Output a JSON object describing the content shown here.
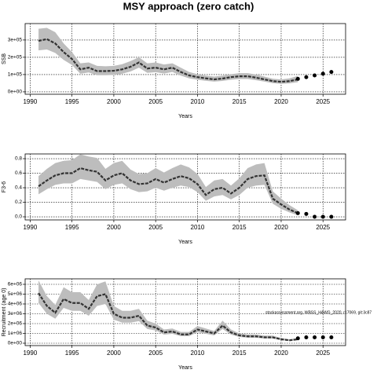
{
  "title": "MSY approach (zero catch)",
  "chart_data": [
    {
      "type": "line",
      "y_label": "SSB",
      "x_label": "Years",
      "grid": true,
      "band_color": "#bdbdbd",
      "line_color": "#333333",
      "point_color": "#000000",
      "xlim": [
        1989.4,
        2027.7
      ],
      "xticks": [
        1990,
        1995,
        2000,
        2005,
        2010,
        2015,
        2020,
        2025
      ],
      "ylim": [
        -14000,
        395000
      ],
      "yticks": [
        {
          "value": 0,
          "label": "0e+00"
        },
        {
          "value": 100000,
          "label": "1e+05"
        },
        {
          "value": 200000,
          "label": "2e+05"
        },
        {
          "value": 300000,
          "label": "3e+05"
        }
      ],
      "x": [
        1991,
        1992,
        1993,
        1994,
        1995,
        1996,
        1997,
        1998,
        1999,
        2000,
        2001,
        2002,
        2003,
        2004,
        2005,
        2006,
        2007,
        2008,
        2009,
        2010,
        2011,
        2012,
        2013,
        2014,
        2015,
        2016,
        2017,
        2018,
        2019,
        2020,
        2021,
        2022
      ],
      "values": [
        295000,
        305000,
        280000,
        230000,
        190000,
        130000,
        140000,
        120000,
        120000,
        122000,
        130000,
        145000,
        170000,
        135000,
        140000,
        130000,
        140000,
        115000,
        95000,
        85000,
        78000,
        72000,
        77000,
        85000,
        90000,
        90000,
        82000,
        72000,
        62000,
        58000,
        62000,
        72000
      ],
      "upper": [
        365000,
        370000,
        345000,
        280000,
        230000,
        165000,
        170000,
        150000,
        148000,
        150000,
        160000,
        178000,
        200000,
        165000,
        170000,
        158000,
        165000,
        140000,
        115000,
        102000,
        94000,
        88000,
        94000,
        102000,
        108000,
        108000,
        100000,
        88000,
        76000,
        72000,
        78000,
        92000
      ],
      "lower": [
        240000,
        245000,
        225000,
        185000,
        155000,
        105000,
        112000,
        96000,
        96000,
        98000,
        105000,
        118000,
        140000,
        110000,
        114000,
        106000,
        115000,
        94000,
        78000,
        70000,
        64000,
        59000,
        63000,
        70000,
        74000,
        74000,
        67000,
        59000,
        50000,
        46000,
        49000,
        56000
      ],
      "projection": {
        "x": [
          2022,
          2023,
          2024,
          2025,
          2026
        ],
        "values": [
          75000,
          85000,
          95000,
          105000,
          115000
        ]
      }
    },
    {
      "type": "line",
      "y_label": "F3-6",
      "x_label": "Years",
      "grid": true,
      "band_color": "#bdbdbd",
      "line_color": "#333333",
      "point_color": "#000000",
      "xlim": [
        1989.4,
        2027.7
      ],
      "xticks": [
        1990,
        1995,
        2000,
        2005,
        2010,
        2015,
        2020,
        2025
      ],
      "ylim": [
        -0.043,
        0.865
      ],
      "yticks": [
        {
          "value": 0,
          "label": "0.0"
        },
        0.2,
        0.4,
        0.6,
        0.8
      ],
      "x": [
        1991,
        1992,
        1993,
        1994,
        1995,
        1996,
        1997,
        1998,
        1999,
        2000,
        2001,
        2002,
        2003,
        2004,
        2005,
        2006,
        2007,
        2008,
        2009,
        2010,
        2011,
        2012,
        2013,
        2014,
        2015,
        2016,
        2017,
        2018,
        2019,
        2020,
        2021,
        2022
      ],
      "values": [
        0.42,
        0.5,
        0.57,
        0.6,
        0.6,
        0.67,
        0.64,
        0.62,
        0.5,
        0.57,
        0.6,
        0.5,
        0.45,
        0.46,
        0.52,
        0.47,
        0.52,
        0.56,
        0.53,
        0.45,
        0.3,
        0.38,
        0.4,
        0.32,
        0.4,
        0.52,
        0.56,
        0.57,
        0.25,
        0.17,
        0.1,
        0.05
      ],
      "upper": [
        0.56,
        0.66,
        0.74,
        0.77,
        0.78,
        0.86,
        0.83,
        0.81,
        0.66,
        0.74,
        0.77,
        0.65,
        0.59,
        0.6,
        0.67,
        0.61,
        0.67,
        0.72,
        0.68,
        0.59,
        0.41,
        0.5,
        0.52,
        0.43,
        0.53,
        0.67,
        0.72,
        0.74,
        0.35,
        0.25,
        0.16,
        0.09
      ],
      "lower": [
        0.31,
        0.38,
        0.44,
        0.46,
        0.46,
        0.52,
        0.5,
        0.48,
        0.38,
        0.44,
        0.46,
        0.38,
        0.34,
        0.35,
        0.4,
        0.36,
        0.4,
        0.43,
        0.41,
        0.34,
        0.22,
        0.28,
        0.3,
        0.24,
        0.3,
        0.4,
        0.43,
        0.44,
        0.18,
        0.11,
        0.06,
        0.02
      ],
      "projection": {
        "x": [
          2022,
          2023,
          2024,
          2025,
          2026
        ],
        "values": [
          0.05,
          0.04,
          0,
          0,
          0
        ]
      }
    },
    {
      "type": "line",
      "y_label": "Recruitment (age 0)",
      "x_label": "Years",
      "grid": true,
      "band_color": "#bdbdbd",
      "line_color": "#333333",
      "point_color": "#000000",
      "annotation": "stockassessment.org, WBSS_HAWG_2020, r17069, git:3c87",
      "xlim": [
        1989.4,
        2027.7
      ],
      "xticks": [
        1990,
        1995,
        2000,
        2005,
        2010,
        2015,
        2020,
        2025
      ],
      "ylim": [
        -240000,
        6560000
      ],
      "yticks": [
        {
          "value": 0,
          "label": "0e+00"
        },
        {
          "value": 1000000,
          "label": "1e+06"
        },
        {
          "value": 2000000,
          "label": "2e+06"
        },
        {
          "value": 3000000,
          "label": "3e+06"
        },
        {
          "value": 4000000,
          "label": "4e+06"
        },
        {
          "value": 5000000,
          "label": "5e+06"
        },
        {
          "value": 6000000,
          "label": "6e+06"
        }
      ],
      "x": [
        1991,
        1992,
        1993,
        1994,
        1995,
        1996,
        1997,
        1998,
        1999,
        2000,
        2001,
        2002,
        2003,
        2004,
        2005,
        2006,
        2007,
        2008,
        2009,
        2010,
        2011,
        2012,
        2013,
        2014,
        2015,
        2016,
        2017,
        2018,
        2019,
        2020,
        2021,
        2022
      ],
      "values": [
        5100000,
        3800000,
        3100000,
        4500000,
        4100000,
        4100000,
        3500000,
        4800000,
        5000000,
        3000000,
        2600000,
        2600000,
        2800000,
        1800000,
        1600000,
        1100000,
        1200000,
        900000,
        900000,
        1400000,
        1200000,
        1000000,
        1800000,
        1100000,
        800000,
        700000,
        700000,
        600000,
        600000,
        400000,
        300000,
        400000
      ],
      "upper": [
        6400000,
        4800000,
        3900000,
        5700000,
        5200000,
        5200000,
        4400000,
        6000000,
        6300000,
        3800000,
        3300000,
        3300000,
        3500000,
        2300000,
        2000000,
        1400000,
        1500000,
        1150000,
        1150000,
        1750000,
        1500000,
        1250000,
        2300000,
        1400000,
        1000000,
        900000,
        900000,
        780000,
        780000,
        520000,
        400000,
        520000
      ],
      "lower": [
        4100000,
        3000000,
        2500000,
        3600000,
        3300000,
        3300000,
        2800000,
        3800000,
        4000000,
        2400000,
        2100000,
        2100000,
        2250000,
        1450000,
        1300000,
        880000,
        960000,
        720000,
        720000,
        1120000,
        960000,
        800000,
        1450000,
        880000,
        640000,
        560000,
        560000,
        480000,
        480000,
        320000,
        240000,
        320000
      ],
      "projection": {
        "x": [
          2022,
          2023,
          2024,
          2025,
          2026
        ],
        "values": [
          500000,
          600000,
          600000,
          600000,
          600000
        ]
      }
    }
  ]
}
